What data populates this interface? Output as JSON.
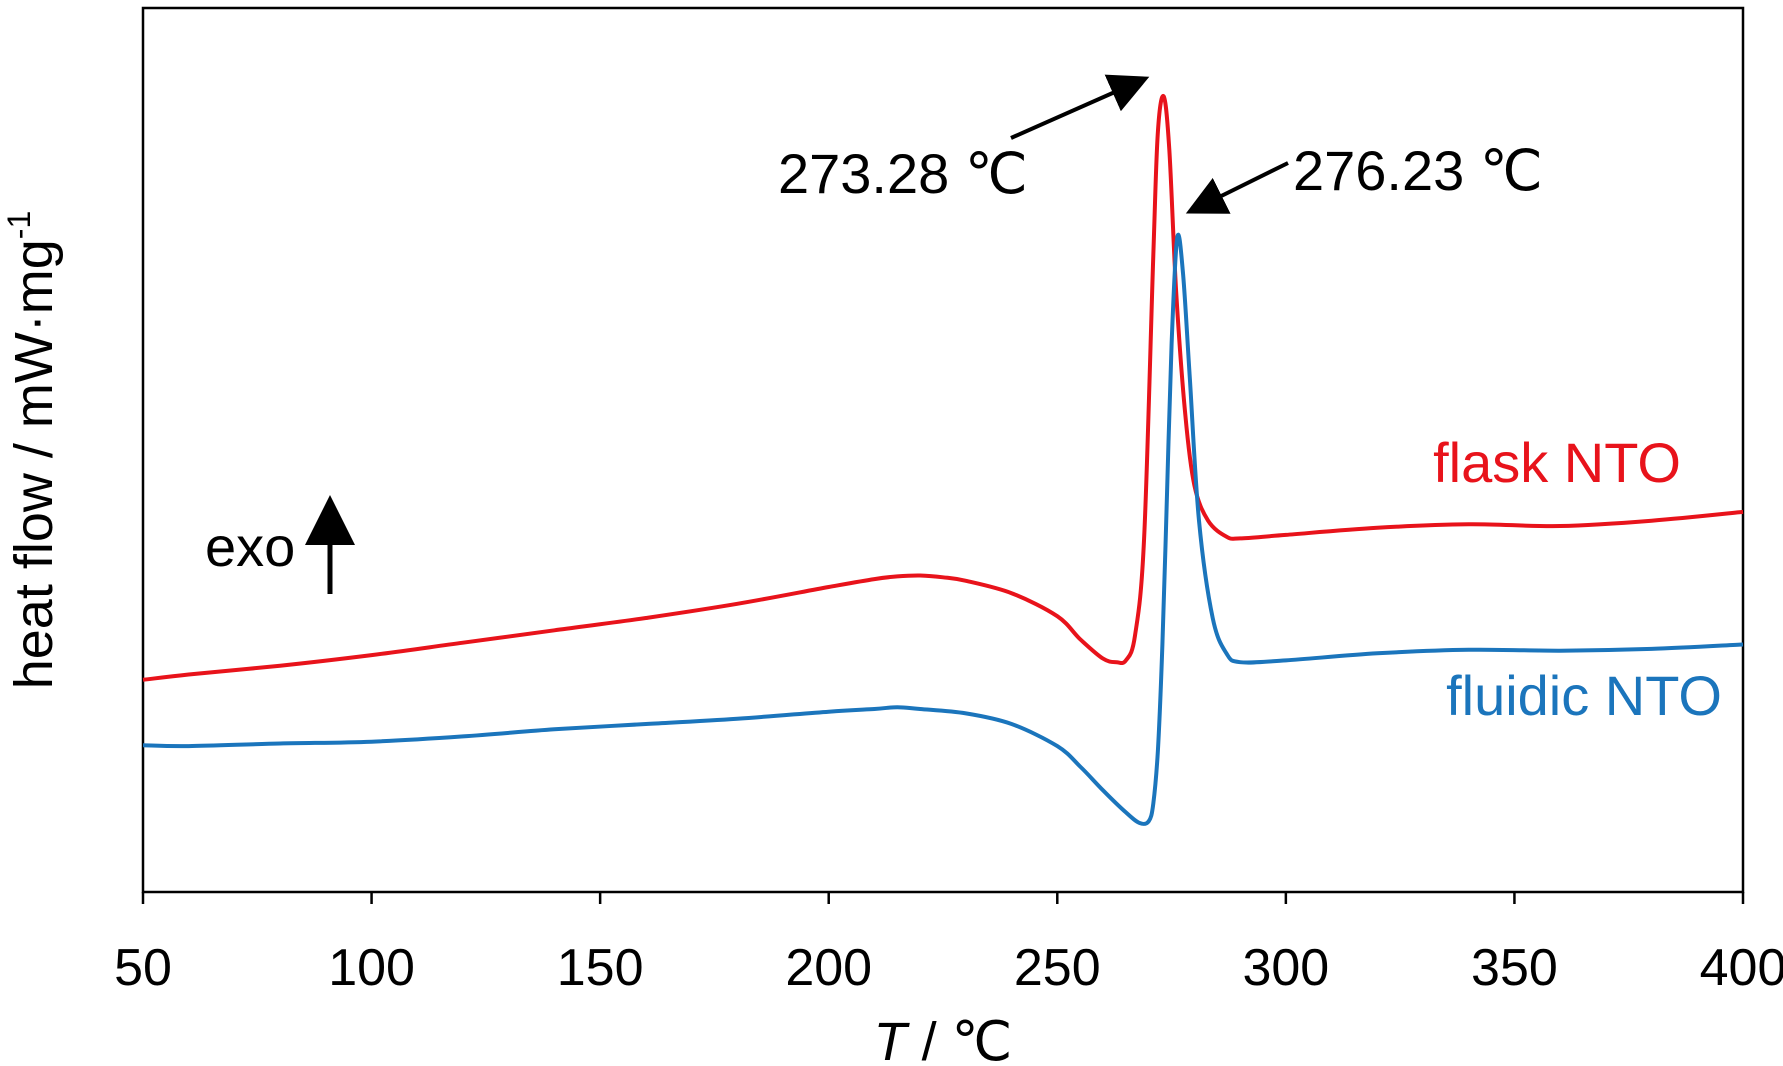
{
  "chart_data": {
    "type": "line",
    "title": "",
    "xlabel_italic": "T",
    "xlabel_rest": " / ℃",
    "ylabel": "heat flow / mW·mg",
    "ylabel_sup": "-1",
    "xlim": [
      50,
      400
    ],
    "ylim": [
      0,
      100
    ],
    "xticks": [
      50,
      100,
      150,
      200,
      250,
      300,
      350,
      400
    ],
    "xtick_labels": [
      "50",
      "100",
      "150",
      "200",
      "250",
      "300",
      "350",
      "400"
    ],
    "grid": false,
    "exo_label": "exo",
    "series": [
      {
        "name": "flask NTO",
        "color": "#e8131b",
        "x": [
          50,
          60,
          80,
          100,
          120,
          140,
          160,
          180,
          200,
          210,
          215,
          220,
          225,
          230,
          240,
          250,
          255,
          260,
          263,
          265,
          267,
          269,
          271,
          272,
          273.28,
          274.5,
          276,
          278,
          280,
          283,
          287,
          290,
          300,
          320,
          340,
          360,
          380,
          400
        ],
        "y": [
          24,
          24.6,
          25.6,
          26.8,
          28.2,
          29.6,
          31,
          32.6,
          34.5,
          35.4,
          35.7,
          35.8,
          35.6,
          35.2,
          33.8,
          31.2,
          28.6,
          26.4,
          26,
          26.2,
          29,
          40,
          72,
          86,
          90,
          84,
          68,
          54,
          46,
          42,
          40.2,
          40,
          40.4,
          41.2,
          41.6,
          41.4,
          42,
          43
        ]
      },
      {
        "name": "fluidic NTO",
        "color": "#1b75bc",
        "x": [
          50,
          60,
          80,
          100,
          120,
          140,
          160,
          180,
          200,
          210,
          215,
          220,
          230,
          240,
          250,
          255,
          260,
          265,
          268,
          270,
          271,
          272,
          273,
          274,
          275,
          276.23,
          277.5,
          279,
          281,
          284,
          287,
          290,
          300,
          320,
          340,
          360,
          380,
          400
        ],
        "y": [
          16.6,
          16.5,
          16.8,
          17,
          17.6,
          18.4,
          19,
          19.6,
          20.4,
          20.7,
          20.9,
          20.7,
          20.2,
          19,
          16.5,
          14.2,
          11.5,
          9,
          7.8,
          8,
          10,
          16,
          28,
          45,
          62,
          74,
          70,
          58,
          42,
          31,
          27,
          26,
          26.2,
          27,
          27.4,
          27.3,
          27.5,
          28
        ]
      }
    ],
    "annotations": [
      {
        "text": "273.28 ℃",
        "x": 273.28,
        "series": "flask NTO"
      },
      {
        "text": "276.23 ℃",
        "x": 276.23,
        "series": "fluidic NTO"
      }
    ]
  }
}
